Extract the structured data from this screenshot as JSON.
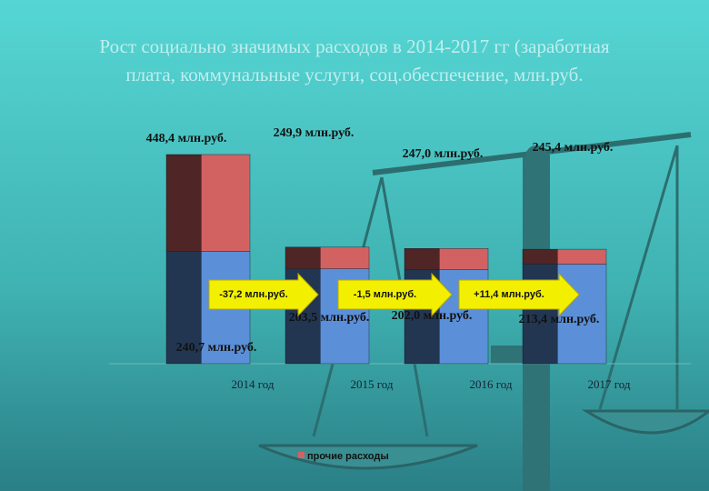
{
  "chart_data": {
    "type": "stacked_bar",
    "title": [
      "Рост социально значимых расходов в 2014-2017 гг (заработная",
      "плата, коммунальные услуги, соц.обеспечение, млн.руб."
    ],
    "categories": [
      "2014 год",
      "2015 год",
      "2016 год",
      "2017 год"
    ],
    "series": [
      {
        "color": "#5b8fd8",
        "values": [
          240.7,
          203.5,
          202.0,
          213.4
        ],
        "value_labels": [
          "240,7 млн.руб.",
          "203,5 млн.руб.",
          "202,0 млн.руб.",
          "213,4 млн.руб."
        ]
      },
      {
        "name": "прочие расходы",
        "color": "#d26262",
        "values": [
          207.7,
          46.4,
          45.0,
          32.0
        ]
      }
    ],
    "total_labels": [
      "448,4 млн.руб.",
      "249,9 млн.руб.",
      "247,0 млн.руб.",
      "245,4 млн.руб."
    ],
    "change_labels": [
      "-37,2 млн.руб.",
      "-1,5 млн.руб.",
      "+11,4 млн.руб."
    ]
  }
}
